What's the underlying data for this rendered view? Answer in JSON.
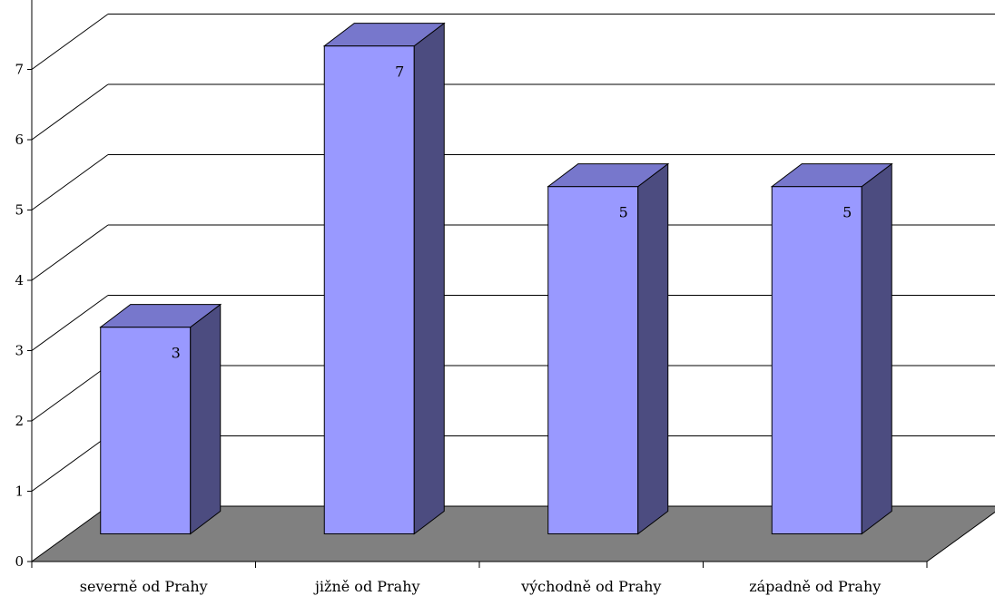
{
  "chart_data": {
    "type": "bar",
    "categories": [
      "severně od Prahy",
      "jižně od Prahy",
      "východně od Prahy",
      "západně od Prahy"
    ],
    "values": [
      3,
      7,
      5,
      5
    ],
    "data_labels": [
      "3",
      "7",
      "5",
      "5"
    ],
    "y_ticks": [
      "0",
      "1",
      "2",
      "3",
      "4",
      "5",
      "6",
      "7"
    ],
    "ylim": [
      0,
      7
    ],
    "grid": true,
    "three_d": true,
    "colors": {
      "bar_front": "#9999ff",
      "bar_top": "#7777cc",
      "bar_side": "#4c4c80",
      "floor": "#808080",
      "grid": "#000000"
    }
  }
}
